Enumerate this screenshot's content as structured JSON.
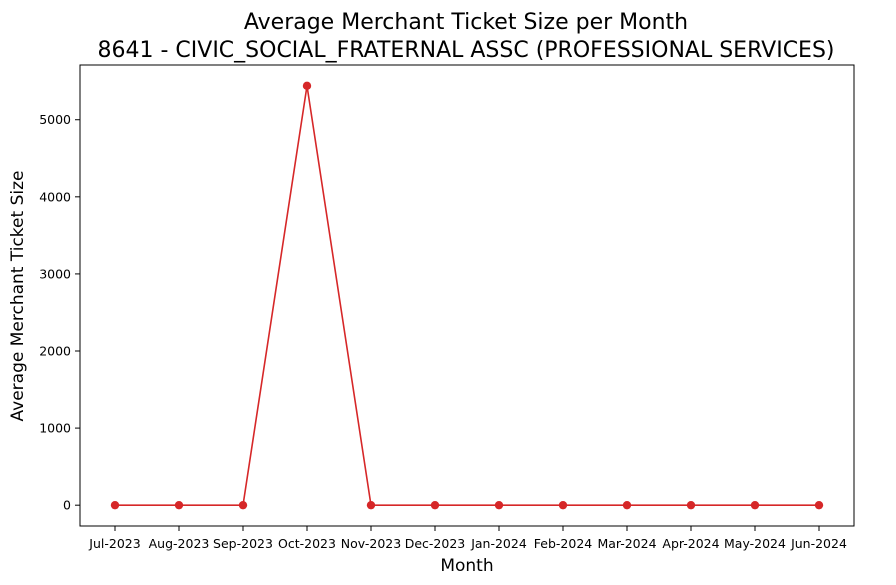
{
  "chart_data": {
    "type": "line",
    "title": "Average Merchant Ticket Size per Month",
    "subtitle": "8641 - CIVIC_SOCIAL_FRATERNAL ASSC (PROFESSIONAL SERVICES)",
    "xlabel": "Month",
    "ylabel": "Average Merchant Ticket Size",
    "categories": [
      "Jul-2023",
      "Aug-2023",
      "Sep-2023",
      "Oct-2023",
      "Nov-2023",
      "Dec-2023",
      "Jan-2024",
      "Feb-2024",
      "Mar-2024",
      "Apr-2024",
      "May-2024",
      "Jun-2024"
    ],
    "values": [
      0,
      0,
      0,
      5440,
      0,
      0,
      0,
      0,
      0,
      0,
      0,
      0
    ],
    "yticks": [
      0,
      1000,
      2000,
      3000,
      4000,
      5000
    ],
    "ylim": [
      -270,
      5710
    ],
    "grid": false,
    "line_color": "#d62728"
  }
}
